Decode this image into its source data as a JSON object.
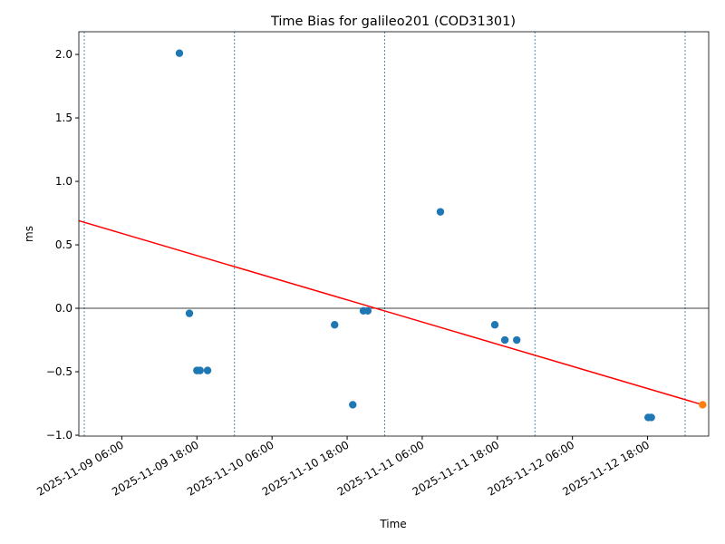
{
  "chart_data": {
    "type": "scatter",
    "title": "Time Bias for galileo201 (COD31301)",
    "x_label": "Time",
    "y_label": "ms",
    "xlim": [
      "2025-11-08 23:08",
      "2025-11-13 03:46"
    ],
    "xticks": [
      "2025-11-09 06:00",
      "2025-11-09 18:00",
      "2025-11-10 06:00",
      "2025-11-10 18:00",
      "2025-11-11 06:00",
      "2025-11-11 18:00",
      "2025-11-12 06:00",
      "2025-11-12 18:00"
    ],
    "ylim": [
      -1.007,
      2.179
    ],
    "yticks": [
      {
        "value": -1,
        "label": "−1.0"
      },
      {
        "value": -0.5,
        "label": "−0.5"
      },
      {
        "value": 0,
        "label": "0.0"
      },
      {
        "value": 0.5,
        "label": "0.5"
      },
      {
        "value": 1,
        "label": "1.0"
      },
      {
        "value": 1.5,
        "label": "1.5"
      },
      {
        "value": 2,
        "label": "2.0"
      }
    ],
    "hline": 0,
    "vlines": [
      "2025-11-09 00:00",
      "2025-11-10 00:00",
      "2025-11-11 00:00",
      "2025-11-12 00:00",
      "2025-11-13 00:00"
    ],
    "series": [
      {
        "type": "line",
        "color": "#ff0000",
        "x": [
          "2025-11-08 23:08",
          "2025-11-13 02:48"
        ],
        "values": [
          0.69,
          -0.76
        ]
      },
      {
        "type": "scatter",
        "color": "#1f77b4",
        "x": [
          "2025-11-09 15:12",
          "2025-11-09 16:48",
          "2025-11-09 18:00",
          "2025-11-09 18:30",
          "2025-11-09 19:42",
          "2025-11-10 16:00",
          "2025-11-10 18:54",
          "2025-11-10 20:36",
          "2025-11-10 21:18",
          "2025-11-11 08:54",
          "2025-11-11 17:36",
          "2025-11-11 19:12",
          "2025-11-11 21:06",
          "2025-11-12 18:06",
          "2025-11-12 18:36"
        ],
        "values": [
          2.01,
          -0.04,
          -0.49,
          -0.49,
          -0.49,
          -0.13,
          -0.76,
          -0.02,
          -0.02,
          0.76,
          -0.13,
          -0.25,
          -0.25,
          -0.86,
          -0.86
        ]
      },
      {
        "type": "scatter",
        "color": "#ff7f0e",
        "x": [
          "2025-11-13 02:48"
        ],
        "values": [
          -0.76
        ]
      }
    ]
  }
}
